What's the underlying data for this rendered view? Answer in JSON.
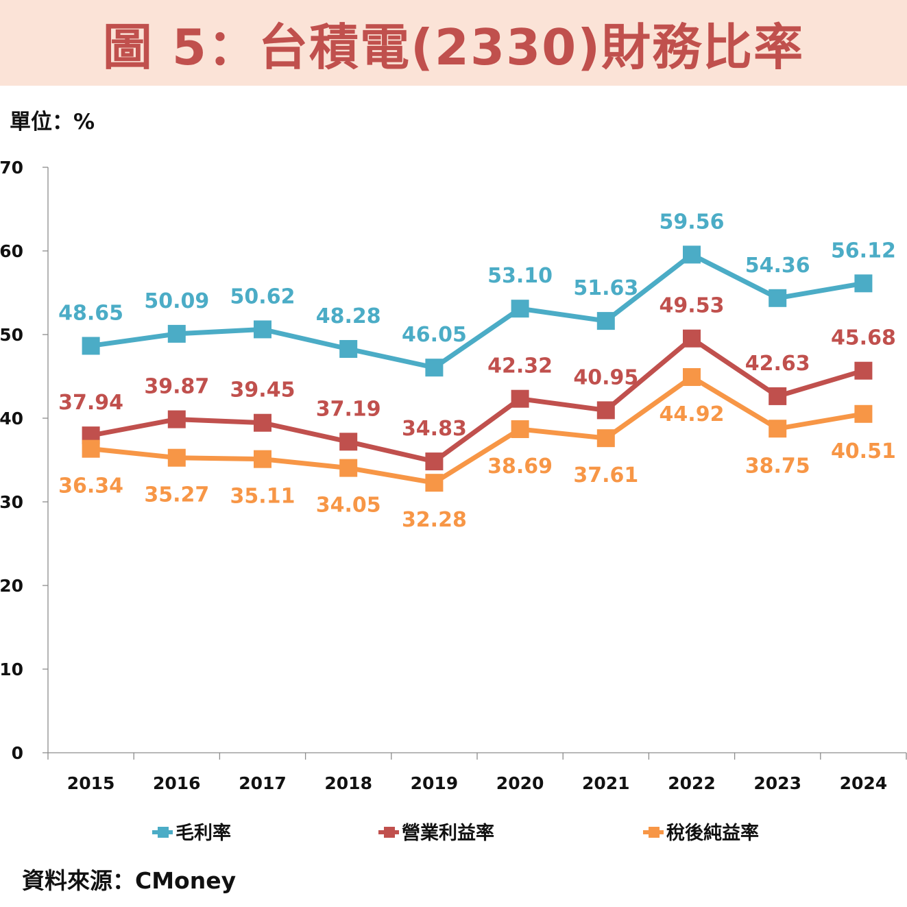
{
  "header": {
    "title": "圖 5：台積電(2330)財務比率"
  },
  "unit_label": "單位：%",
  "source": "資料來源：CMoney",
  "colors": {
    "gross": "#4bacc6",
    "operating": "#c0504d",
    "net": "#f79646",
    "banner": "#fbe3d7"
  },
  "chart_data": {
    "type": "line",
    "categories": [
      "2015",
      "2016",
      "2017",
      "2018",
      "2019",
      "2020",
      "2021",
      "2022",
      "2023",
      "2024"
    ],
    "ylim": [
      0,
      70
    ],
    "yticks": [
      "0",
      "10",
      "20",
      "30",
      "40",
      "50",
      "60",
      "70"
    ],
    "grid": false,
    "legend_position": "bottom",
    "series": [
      {
        "name": "毛利率",
        "color": "#4bacc6",
        "values": [
          48.65,
          50.09,
          50.62,
          48.28,
          46.05,
          53.1,
          51.63,
          59.56,
          54.36,
          56.12
        ],
        "labels": [
          "48.65",
          "50.09",
          "50.62",
          "48.28",
          "46.05",
          "53.10",
          "51.63",
          "59.56",
          "54.36",
          "56.12"
        ]
      },
      {
        "name": "營業利益率",
        "color": "#c0504d",
        "values": [
          37.94,
          39.87,
          39.45,
          37.19,
          34.83,
          42.32,
          40.95,
          49.53,
          42.63,
          45.68
        ],
        "labels": [
          "37.94",
          "39.87",
          "39.45",
          "37.19",
          "34.83",
          "42.32",
          "40.95",
          "49.53",
          "42.63",
          "45.68"
        ]
      },
      {
        "name": "稅後純益率",
        "color": "#f79646",
        "values": [
          36.34,
          35.27,
          35.11,
          34.05,
          32.28,
          38.69,
          37.61,
          44.92,
          38.75,
          40.51
        ],
        "labels": [
          "36.34",
          "35.27",
          "35.11",
          "34.05",
          "32.28",
          "38.69",
          "37.61",
          "44.92",
          "38.75",
          "40.51"
        ]
      }
    ]
  }
}
